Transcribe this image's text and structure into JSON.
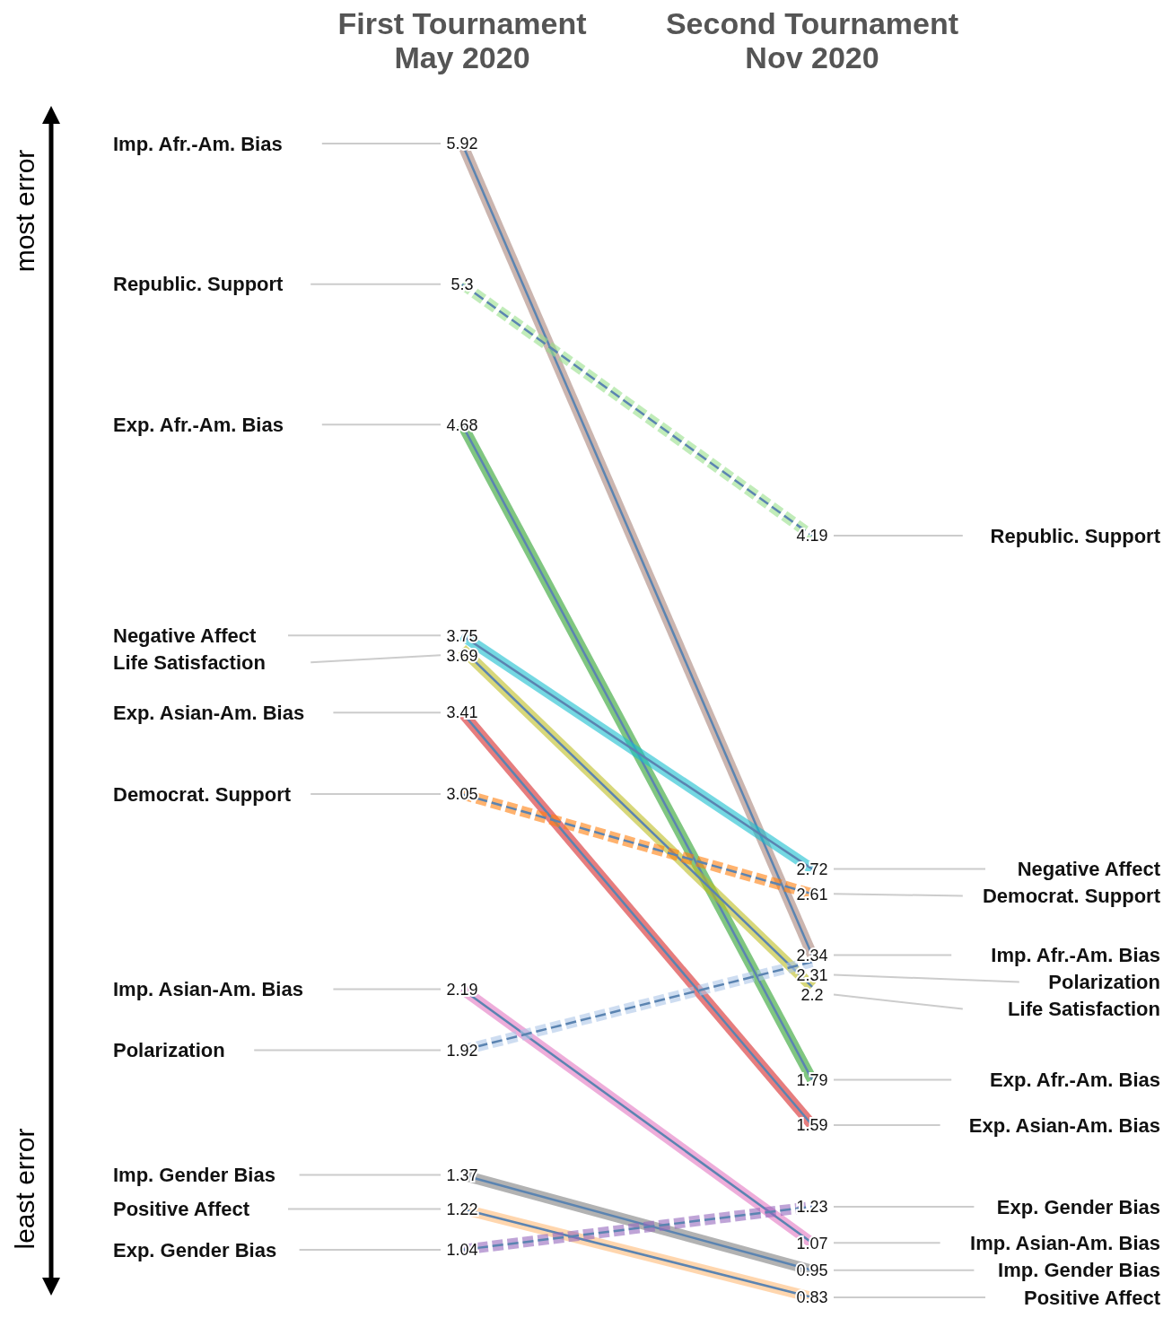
{
  "chart_data": {
    "type": "line",
    "categories": [
      "First Tournament\nMay 2020",
      "Second Tournament\nNov 2020"
    ],
    "data_labels": true,
    "annotations": [
      "most error",
      "least error"
    ],
    "series": [
      {
        "name": "Imp. Afr.-Am. Bias",
        "color": "#a9837a",
        "values": [
          5.92,
          2.34
        ],
        "line_style": "solid"
      },
      {
        "name": "Republic. Support",
        "color": "#98df8a",
        "values": [
          5.3,
          4.19
        ],
        "line_style": "dashed"
      },
      {
        "name": "Exp. Afr.-Am. Bias",
        "color": "#2ca02c",
        "values": [
          4.68,
          1.79
        ],
        "line_style": "solid"
      },
      {
        "name": "Negative Affect",
        "color": "#17becf",
        "values": [
          3.75,
          2.72
        ],
        "line_style": "solid"
      },
      {
        "name": "Life Satisfaction",
        "color": "#bcbd22",
        "values": [
          3.69,
          2.2
        ],
        "line_style": "solid"
      },
      {
        "name": "Exp. Asian-Am. Bias",
        "color": "#d62728",
        "values": [
          3.41,
          1.59
        ],
        "line_style": "solid"
      },
      {
        "name": "Democrat. Support",
        "color": "#ff7f0e",
        "values": [
          3.05,
          2.61
        ],
        "line_style": "dashed"
      },
      {
        "name": "Imp. Asian-Am. Bias",
        "color": "#e377c2",
        "values": [
          2.19,
          1.07
        ],
        "line_style": "solid"
      },
      {
        "name": "Polarization",
        "color": "#aec7e8",
        "values": [
          1.92,
          2.31
        ],
        "line_style": "dashed"
      },
      {
        "name": "Imp. Gender Bias",
        "color": "#7f7f7f",
        "values": [
          1.37,
          0.95
        ],
        "line_style": "solid"
      },
      {
        "name": "Positive Affect",
        "color": "#ffbb78",
        "values": [
          1.22,
          0.83
        ],
        "line_style": "solid"
      },
      {
        "name": "Exp. Gender Bias",
        "color": "#9467bd",
        "values": [
          1.04,
          1.23
        ],
        "line_style": "dashed"
      }
    ]
  }
}
